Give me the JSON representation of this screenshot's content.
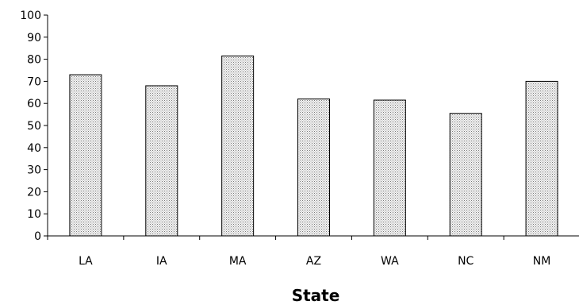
{
  "chart_data": {
    "type": "bar",
    "categories": [
      "LA",
      "IA",
      "MA",
      "AZ",
      "WA",
      "NC",
      "NM"
    ],
    "values": [
      73,
      68,
      81.5,
      62,
      61.5,
      55.5,
      70
    ],
    "xlabel": "State",
    "ylabel": "",
    "ylim": [
      0,
      100
    ],
    "yticks": [
      0,
      10,
      20,
      30,
      40,
      50,
      60,
      70,
      80,
      90,
      100
    ],
    "grid": false,
    "bar_fill": "dotted",
    "colors": {
      "bar_fill": "#e0e0e0",
      "bar_stroke": "#000000",
      "axis": "#000000"
    }
  }
}
